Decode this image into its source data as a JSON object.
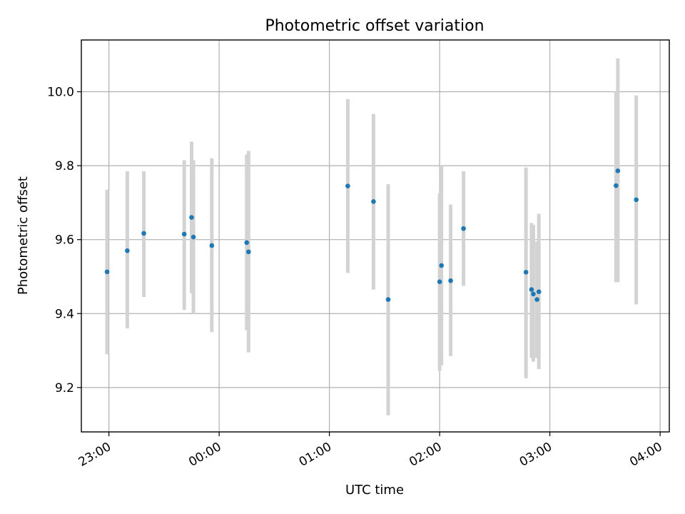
{
  "chart_data": {
    "type": "scatter",
    "title": "Photometric offset variation",
    "xlabel": "UTC time",
    "ylabel": "Photometric offset",
    "x_unit": "UTC",
    "xlim": [
      "22:45",
      "04:05"
    ],
    "ylim": [
      9.08,
      10.14
    ],
    "xticks": [
      "23:00",
      "00:00",
      "01:00",
      "02:00",
      "03:00",
      "04:00"
    ],
    "yticks": [
      9.2,
      9.4,
      9.6,
      9.8,
      10.0
    ],
    "ytick_labels": [
      "9.2",
      "9.4",
      "9.6",
      "9.8",
      "10.0"
    ],
    "grid": true,
    "colors": {
      "points": "#1f77b4",
      "errorbars": "#d3d3d3",
      "grid": "#b0b0b0"
    },
    "series": [
      {
        "x": [
          "22:59",
          "23:10",
          "23:19",
          "23:41",
          "23:45",
          "23:46",
          "23:56",
          "00:15",
          "00:16",
          "01:10",
          "01:24",
          "01:32",
          "02:00",
          "02:01",
          "02:06",
          "02:13",
          "02:47",
          "02:50",
          "02:51",
          "02:53",
          "02:54",
          "03:36",
          "03:37",
          "03:47"
        ],
        "y": [
          9.513,
          9.57,
          9.617,
          9.615,
          9.66,
          9.607,
          9.584,
          9.592,
          9.567,
          9.745,
          9.703,
          9.438,
          9.486,
          9.53,
          9.489,
          9.63,
          9.512,
          9.465,
          9.453,
          9.438,
          9.459,
          9.746,
          9.786,
          9.708
        ],
        "yerr_low": [
          9.29,
          9.36,
          9.445,
          9.41,
          9.455,
          9.4,
          9.35,
          9.355,
          9.295,
          9.51,
          9.465,
          9.125,
          9.245,
          9.26,
          9.285,
          9.475,
          9.225,
          9.28,
          9.27,
          9.28,
          9.25,
          9.485,
          9.485,
          9.425
        ],
        "yerr_high": [
          9.735,
          9.785,
          9.785,
          9.815,
          9.865,
          9.815,
          9.82,
          9.83,
          9.84,
          9.98,
          9.94,
          9.75,
          9.725,
          9.8,
          9.695,
          9.785,
          9.795,
          9.645,
          9.64,
          9.595,
          9.67,
          10.0,
          10.09,
          9.99
        ]
      }
    ]
  }
}
